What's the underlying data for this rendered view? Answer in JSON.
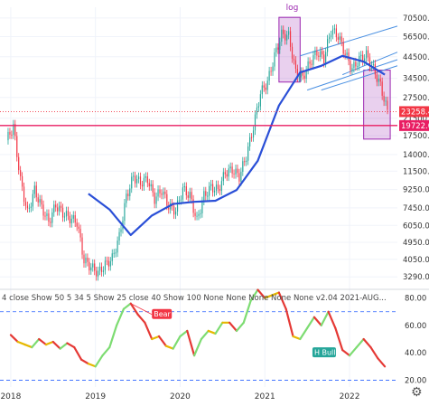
{
  "chart_data": {
    "type": "candlestick",
    "title": "",
    "main_panel": {
      "y_scale": "log",
      "ylim": [
        2900,
        80000
      ],
      "y_ticks": [
        3290.0,
        4050.0,
        4950.0,
        6050.0,
        7450.0,
        9250.0,
        11500.0,
        14000.0,
        17500.0,
        21500.0,
        27500.0,
        34500.0,
        44500.0,
        56500.0,
        70500.0
      ],
      "y_tick_labels": [
        "3290.0",
        "4050.0",
        "4950.0",
        "6050.0",
        "7450.0",
        "9250.0",
        "11500.0",
        "14000.0",
        "17500.0",
        "21500.0",
        "27500.0",
        "34500.0",
        "44500.0",
        "56500.0",
        "70500.0"
      ],
      "price_series": {
        "style": "candles",
        "dates": [
          "2018-01",
          "2018-02",
          "2018-03",
          "2018-04",
          "2018-05",
          "2018-06",
          "2018-07",
          "2018-08",
          "2018-09",
          "2018-10",
          "2018-11",
          "2018-12",
          "2019-01",
          "2019-02",
          "2019-03",
          "2019-04",
          "2019-05",
          "2019-06",
          "2019-07",
          "2019-08",
          "2019-09",
          "2019-10",
          "2019-11",
          "2019-12",
          "2020-01",
          "2020-02",
          "2020-03",
          "2020-04",
          "2020-05",
          "2020-06",
          "2020-07",
          "2020-08",
          "2020-09",
          "2020-10",
          "2020-11",
          "2020-12",
          "2021-01",
          "2021-02",
          "2021-03",
          "2021-04",
          "2021-05",
          "2021-06",
          "2021-07",
          "2021-08",
          "2021-09",
          "2021-10",
          "2021-11",
          "2021-12",
          "2022-01",
          "2022-02",
          "2022-03",
          "2022-04",
          "2022-05",
          "2022-06"
        ],
        "close": [
          19500,
          10300,
          7000,
          9200,
          7500,
          6300,
          7700,
          7000,
          6600,
          6300,
          4000,
          3700,
          3450,
          3800,
          4100,
          5300,
          8500,
          10800,
          10000,
          10500,
          8300,
          9200,
          7600,
          7200,
          9300,
          8600,
          6400,
          8600,
          9500,
          9200,
          11300,
          11700,
          10800,
          13800,
          19400,
          29000,
          33000,
          45000,
          58000,
          57000,
          37000,
          35000,
          41500,
          47000,
          43800,
          61300,
          57000,
          46300,
          38500,
          43200,
          45500,
          38600,
          31700,
          23258
        ]
      },
      "moving_average": {
        "name": "",
        "color": "#2a4fd7",
        "dates": [
          "2018-12",
          "2019-03",
          "2019-06",
          "2019-09",
          "2019-12",
          "2020-03",
          "2020-06",
          "2020-09",
          "2020-12",
          "2021-03",
          "2021-06",
          "2021-09",
          "2021-12",
          "2022-03",
          "2022-06"
        ],
        "values": [
          8800,
          7300,
          5400,
          6800,
          7800,
          8000,
          8100,
          9200,
          13000,
          25000,
          37000,
          40000,
          45000,
          42000,
          36000
        ]
      },
      "current_price_label": "23258.4",
      "current_price_color": "#f23645",
      "horizontal_level": {
        "value": 19722.0,
        "label": "19722.0",
        "color": "#e91e63"
      },
      "annotations": [
        {
          "text": "log",
          "color": "#9c27b0"
        },
        {
          "text": "19722.0",
          "color": "#e91e63"
        }
      ]
    },
    "oscillator_panel": {
      "indicator_label": "4 close Show 50 5 34 5 Show 25 close 40 Show 100 None None None None None v2.04 2021-AUG...",
      "ylim": [
        15,
        85
      ],
      "y_ticks": [
        20.0,
        40.0,
        60.0,
        80.0
      ],
      "y_tick_labels": [
        "20.00",
        "40.00",
        "60.00",
        "80.00"
      ],
      "dashed_levels": [
        70,
        20
      ],
      "dates": [
        "2018-01",
        "2018-02",
        "2018-03",
        "2018-04",
        "2018-05",
        "2018-06",
        "2018-07",
        "2018-08",
        "2018-09",
        "2018-10",
        "2018-11",
        "2018-12",
        "2019-01",
        "2019-02",
        "2019-03",
        "2019-04",
        "2019-05",
        "2019-06",
        "2019-07",
        "2019-08",
        "2019-09",
        "2019-10",
        "2019-11",
        "2019-12",
        "2020-01",
        "2020-02",
        "2020-03",
        "2020-04",
        "2020-05",
        "2020-06",
        "2020-07",
        "2020-08",
        "2020-09",
        "2020-10",
        "2020-11",
        "2020-12",
        "2021-01",
        "2021-02",
        "2021-03",
        "2021-04",
        "2021-05",
        "2021-06",
        "2021-07",
        "2021-08",
        "2021-09",
        "2021-10",
        "2021-11",
        "2021-12",
        "2022-01",
        "2022-02",
        "2022-03",
        "2022-04",
        "2022-05",
        "2022-06"
      ],
      "values": [
        53,
        48,
        46,
        44,
        50,
        46,
        48,
        43,
        47,
        44,
        35,
        32,
        30,
        38,
        44,
        60,
        72,
        76,
        68,
        62,
        50,
        52,
        45,
        43,
        52,
        56,
        38,
        50,
        56,
        54,
        62,
        62,
        56,
        62,
        78,
        86,
        80,
        82,
        84,
        72,
        52,
        50,
        58,
        66,
        60,
        70,
        58,
        42,
        38,
        44,
        50,
        44,
        36,
        30
      ],
      "labels": [
        {
          "text": "Bear",
          "color": "#f23645"
        },
        {
          "text": "H Bull",
          "color": "#26a69a"
        }
      ]
    },
    "x_axis": {
      "tick_labels": [
        "2018",
        "2019",
        "2020",
        "2021",
        "2022"
      ],
      "tick_dates": [
        "2018-01",
        "2019-01",
        "2020-01",
        "2021-01",
        "2022-01"
      ]
    },
    "colors": {
      "up": "#26a69a",
      "down": "#f23645",
      "purple_box": "#9c27b0",
      "trend_lines": "#4a90e2",
      "osc_up": "#7ddc72",
      "osc_mid": "#e6b800",
      "osc_down": "#e53935"
    }
  },
  "ui": {
    "settings_icon": "gear-icon"
  }
}
